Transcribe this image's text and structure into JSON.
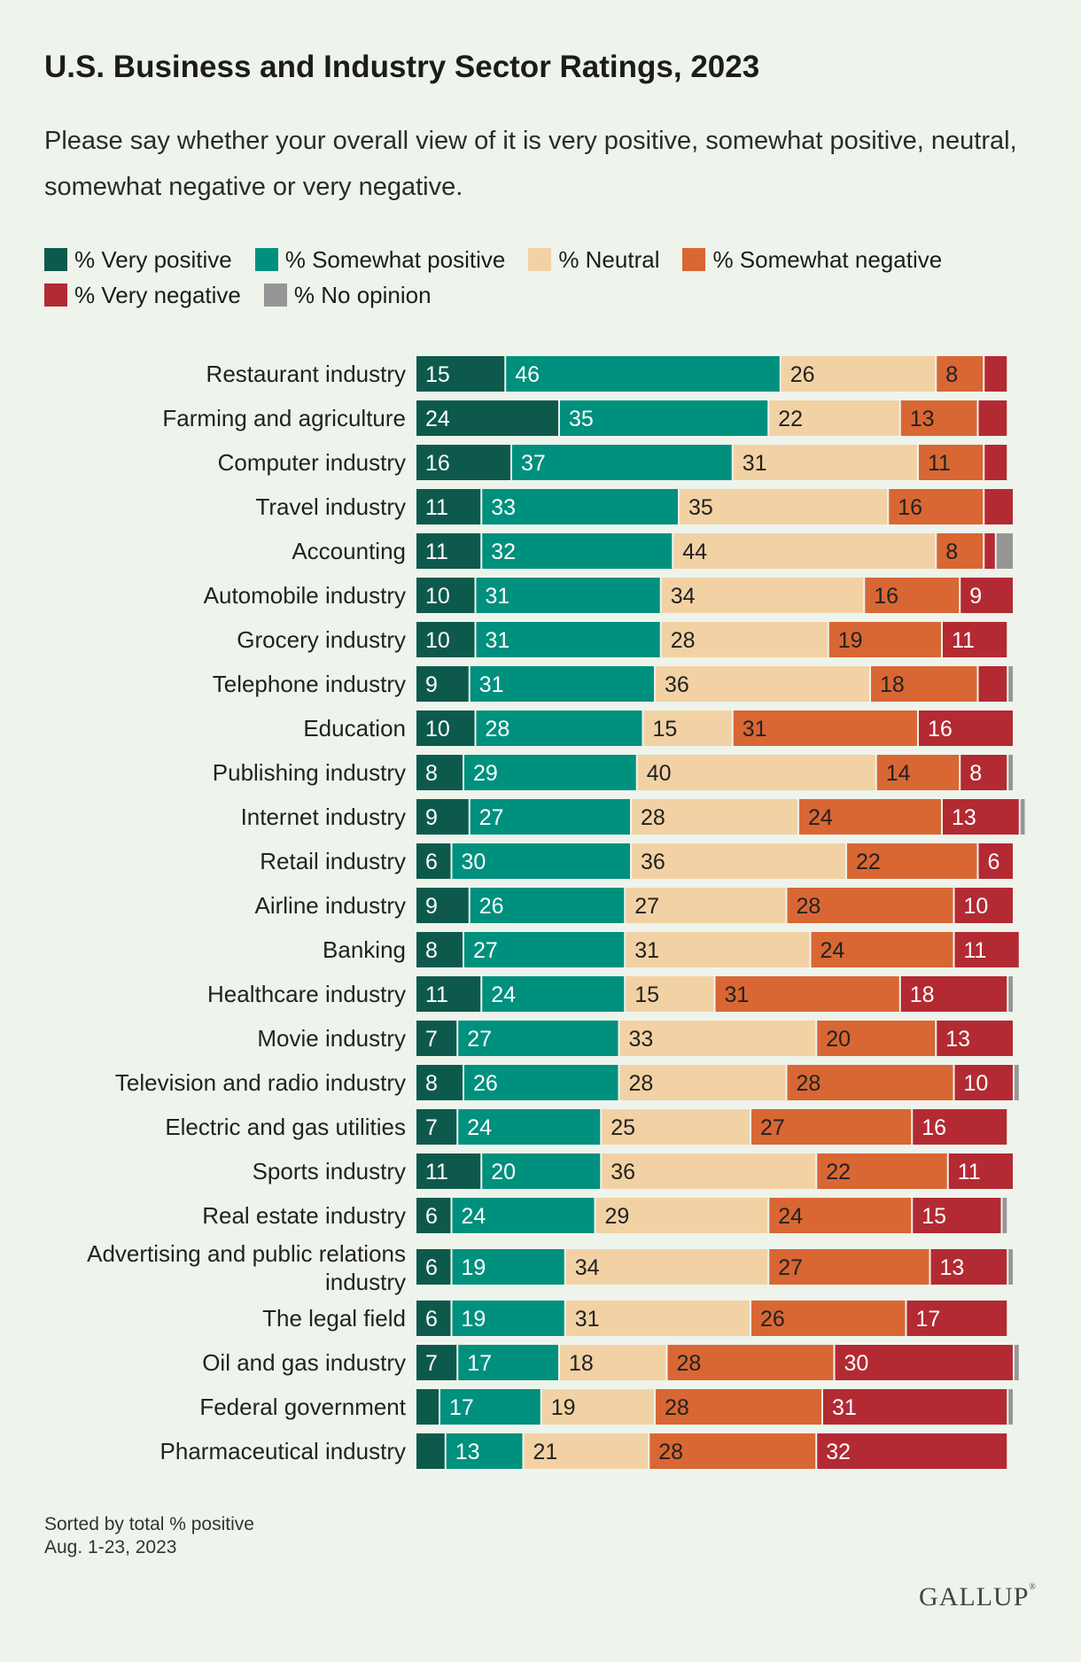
{
  "brand": "GALLUP",
  "chart_data": {
    "type": "bar",
    "orientation": "horizontal",
    "stacked": true,
    "title": "U.S. Business and Industry Sector Ratings, 2023",
    "subtitle": "Please say whether your overall view of it is very positive, somewhat positive, neutral, somewhat negative or very negative.",
    "xlim": [
      0,
      100
    ],
    "legend_position": "top",
    "grid": false,
    "categories": [
      "Restaurant industry",
      "Farming and agriculture",
      "Computer industry",
      "Travel industry",
      "Accounting",
      "Automobile industry",
      "Grocery industry",
      "Telephone industry",
      "Education",
      "Publishing industry",
      "Internet industry",
      "Retail industry",
      "Airline industry",
      "Banking",
      "Healthcare industry",
      "Movie industry",
      "Television and radio industry",
      "Electric and gas utilities",
      "Sports industry",
      "Real estate industry",
      "Advertising and public relations industry",
      "The legal field",
      "Oil and gas industry",
      "Federal government",
      "Pharmaceutical industry"
    ],
    "series": [
      {
        "name": "% Very positive",
        "color": "#0d5a4c",
        "values": [
          15,
          24,
          16,
          11,
          11,
          10,
          10,
          9,
          10,
          8,
          9,
          6,
          9,
          8,
          11,
          7,
          8,
          7,
          11,
          6,
          6,
          6,
          7,
          4,
          5
        ]
      },
      {
        "name": "% Somewhat positive",
        "color": "#00907e",
        "values": [
          46,
          35,
          37,
          33,
          32,
          31,
          31,
          31,
          28,
          29,
          27,
          30,
          26,
          27,
          24,
          27,
          26,
          24,
          20,
          24,
          19,
          19,
          17,
          17,
          13
        ]
      },
      {
        "name": "% Neutral",
        "color": "#f2d2a4",
        "values": [
          26,
          22,
          31,
          35,
          44,
          34,
          28,
          36,
          15,
          40,
          28,
          36,
          27,
          31,
          15,
          33,
          28,
          25,
          36,
          29,
          34,
          31,
          18,
          19,
          21
        ]
      },
      {
        "name": "% Somewhat negative",
        "color": "#d86734",
        "values": [
          8,
          13,
          11,
          16,
          8,
          16,
          19,
          18,
          31,
          14,
          24,
          22,
          28,
          24,
          31,
          20,
          28,
          27,
          22,
          24,
          27,
          26,
          28,
          28,
          28
        ]
      },
      {
        "name": "% Very negative",
        "color": "#b32a33",
        "values": [
          4,
          5,
          4,
          5,
          2,
          9,
          11,
          5,
          16,
          8,
          13,
          6,
          10,
          11,
          18,
          13,
          10,
          16,
          11,
          15,
          13,
          17,
          30,
          31,
          32
        ]
      },
      {
        "name": "% No opinion",
        "color": "#969696",
        "values": [
          0,
          0,
          0,
          0,
          3,
          0,
          0,
          1,
          0,
          1,
          1,
          0,
          0,
          0,
          1,
          0,
          1,
          0,
          0,
          1,
          1,
          0,
          1,
          1,
          0
        ]
      }
    ],
    "label_min_value": 6,
    "annotations": [
      "Sorted by total % positive",
      "Aug. 1-23, 2023"
    ]
  }
}
